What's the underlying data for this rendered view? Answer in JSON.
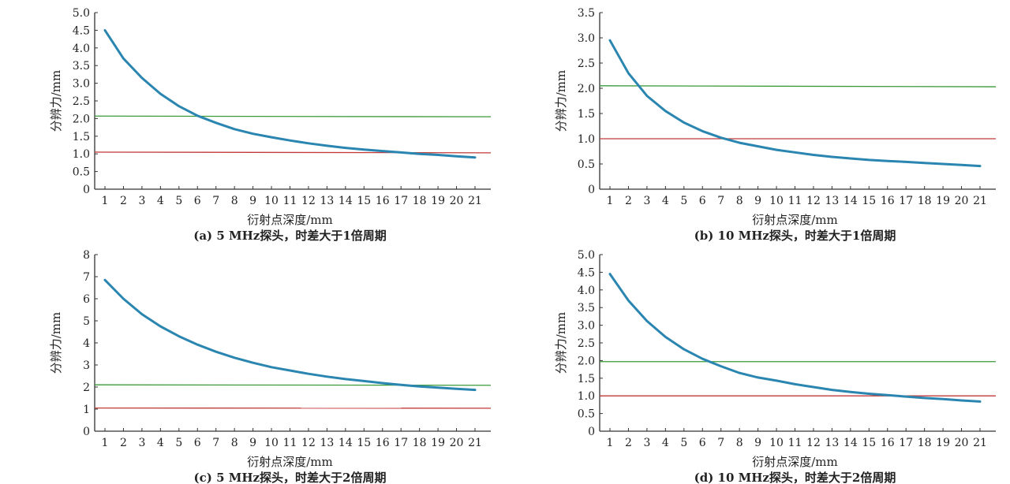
{
  "colors": {
    "curve": "#2a86b0",
    "green_line": "#3a9a3a",
    "red_line": "#c23a3a",
    "axis": "#333333"
  },
  "chart_data": [
    {
      "id": "a",
      "type": "line",
      "caption": "(a) 5 MHz探头，时差大于1倍周期",
      "xlabel": "衍射点深度/mm",
      "ylabel": "分辨力/mm",
      "x": [
        1,
        2,
        3,
        4,
        5,
        6,
        7,
        8,
        9,
        10,
        11,
        12,
        13,
        14,
        15,
        16,
        17,
        18,
        19,
        20,
        21
      ],
      "xticks": [
        "1",
        "2",
        "3",
        "4",
        "5",
        "6",
        "7",
        "8",
        "9",
        "10",
        "11",
        "12",
        "13",
        "14",
        "15",
        "16",
        "17",
        "18",
        "19",
        "20",
        "21"
      ],
      "yticks": [
        "0",
        "0.5",
        "1.0",
        "1.5",
        "2.0",
        "2.5",
        "3.0",
        "3.5",
        "4.0",
        "4.5",
        "5.0"
      ],
      "ylim": [
        0,
        5
      ],
      "series": [
        {
          "values": [
            4.5,
            3.7,
            3.15,
            2.7,
            2.35,
            2.08,
            1.88,
            1.7,
            1.57,
            1.47,
            1.38,
            1.3,
            1.23,
            1.17,
            1.12,
            1.08,
            1.04,
            1.0,
            0.97,
            0.93,
            0.9
          ]
        }
      ],
      "hlines": [
        {
          "y0": 2.07,
          "y1": 2.05,
          "color": "green"
        },
        {
          "y0": 1.05,
          "y1": 1.03,
          "color": "red"
        }
      ]
    },
    {
      "id": "b",
      "type": "line",
      "caption": "(b)  10 MHz探头，时差大于1倍周期",
      "xlabel": "衍射点深度/mm",
      "ylabel": "分辨力/mm",
      "x": [
        1,
        2,
        3,
        4,
        5,
        6,
        7,
        8,
        9,
        10,
        11,
        12,
        13,
        14,
        15,
        16,
        17,
        18,
        19,
        20,
        21
      ],
      "xticks": [
        "1",
        "2",
        "3",
        "4",
        "5",
        "6",
        "7",
        "8",
        "9",
        "10",
        "11",
        "12",
        "13",
        "14",
        "15",
        "16",
        "17",
        "18",
        "19",
        "20",
        "21"
      ],
      "yticks": [
        "0",
        "0.5",
        "1.0",
        "1.5",
        "2.0",
        "2.5",
        "3.0",
        "3.5"
      ],
      "ylim": [
        0,
        3.5
      ],
      "series": [
        {
          "values": [
            2.95,
            2.3,
            1.85,
            1.55,
            1.32,
            1.15,
            1.02,
            0.92,
            0.85,
            0.78,
            0.73,
            0.68,
            0.64,
            0.61,
            0.58,
            0.56,
            0.54,
            0.52,
            0.5,
            0.48,
            0.46
          ]
        }
      ],
      "hlines": [
        {
          "y0": 2.05,
          "y1": 2.03,
          "color": "green"
        },
        {
          "y0": 1.0,
          "y1": 1.0,
          "color": "red"
        }
      ]
    },
    {
      "id": "c",
      "type": "line",
      "caption": "(c) 5 MHz探头，时差大于2倍周期",
      "xlabel": "衍射点深度/mm",
      "ylabel": "分辨力/mm",
      "x": [
        1,
        2,
        3,
        4,
        5,
        6,
        7,
        8,
        9,
        10,
        11,
        12,
        13,
        14,
        15,
        16,
        17,
        18,
        19,
        20,
        21
      ],
      "xticks": [
        "1",
        "2",
        "3",
        "4",
        "5",
        "6",
        "7",
        "8",
        "9",
        "10",
        "11",
        "12",
        "13",
        "14",
        "15",
        "16",
        "17",
        "18",
        "19",
        "20",
        "21"
      ],
      "yticks": [
        "0",
        "1",
        "2",
        "3",
        "4",
        "5",
        "6",
        "7",
        "8"
      ],
      "ylim": [
        0,
        8
      ],
      "series": [
        {
          "values": [
            6.85,
            6.0,
            5.3,
            4.75,
            4.3,
            3.92,
            3.6,
            3.33,
            3.1,
            2.9,
            2.75,
            2.6,
            2.47,
            2.36,
            2.27,
            2.18,
            2.1,
            2.03,
            1.97,
            1.92,
            1.87
          ]
        }
      ],
      "hlines": [
        {
          "y0": 2.1,
          "y1": 2.08,
          "color": "green"
        },
        {
          "y0": 1.05,
          "y1": 1.04,
          "color": "red"
        }
      ]
    },
    {
      "id": "d",
      "type": "line",
      "caption": "(d)  10 MHz探头，时差大于2倍周期",
      "xlabel": "衍射点深度/mm",
      "ylabel": "分辨力/mm",
      "x": [
        1,
        2,
        3,
        4,
        5,
        6,
        7,
        8,
        9,
        10,
        11,
        12,
        13,
        14,
        15,
        16,
        17,
        18,
        19,
        20,
        21
      ],
      "xticks": [
        "1",
        "2",
        "3",
        "4",
        "5",
        "6",
        "7",
        "8",
        "9",
        "10",
        "11",
        "12",
        "13",
        "14",
        "15",
        "16",
        "17",
        "18",
        "19",
        "20",
        "21"
      ],
      "yticks": [
        "0",
        "0.5",
        "1.0",
        "1.5",
        "2.0",
        "2.5",
        "3.0",
        "3.5",
        "4.0",
        "4.5",
        "5.0"
      ],
      "ylim": [
        0,
        5
      ],
      "series": [
        {
          "values": [
            4.45,
            3.7,
            3.12,
            2.67,
            2.32,
            2.05,
            1.84,
            1.65,
            1.52,
            1.43,
            1.33,
            1.25,
            1.17,
            1.11,
            1.06,
            1.02,
            0.98,
            0.94,
            0.91,
            0.87,
            0.84
          ]
        }
      ],
      "hlines": [
        {
          "y0": 1.97,
          "y1": 1.97,
          "color": "green"
        },
        {
          "y0": 1.0,
          "y1": 1.0,
          "color": "red"
        }
      ]
    }
  ]
}
